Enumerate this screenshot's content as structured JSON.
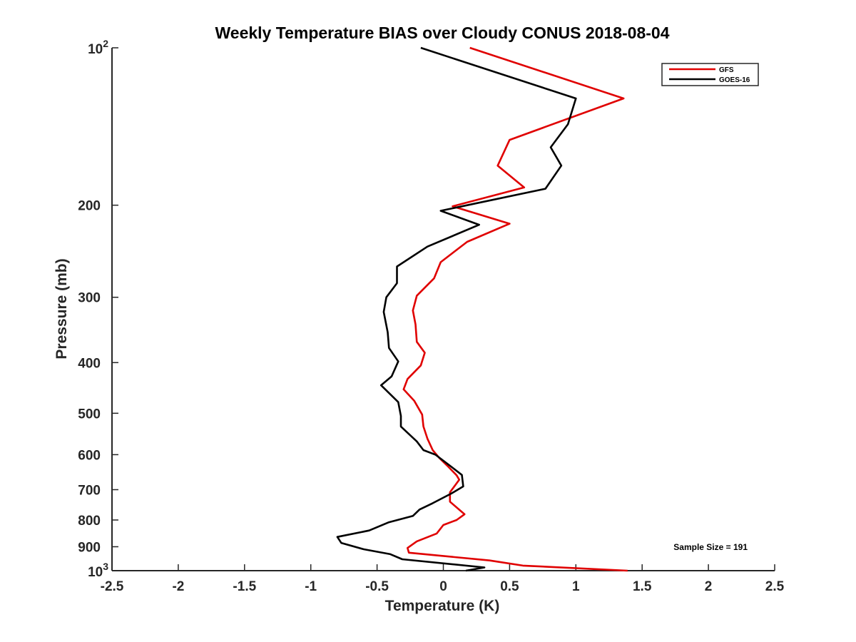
{
  "chart_data": {
    "type": "line",
    "title": "Weekly Temperature BIAS over Cloudy CONUS 2018-08-04",
    "xlabel": "Temperature (K)",
    "ylabel": "Pressure (mb)",
    "xlim": [
      -2.5,
      2.5
    ],
    "ylim": [
      100,
      1000
    ],
    "y_scale": "log",
    "y_reversed": true,
    "grid": false,
    "legend_position": "top-right",
    "x_ticks": [
      {
        "value": -2.5,
        "label": "-2.5"
      },
      {
        "value": -2,
        "label": "-2"
      },
      {
        "value": -1.5,
        "label": "-1.5"
      },
      {
        "value": -1,
        "label": "-1"
      },
      {
        "value": -0.5,
        "label": "-0.5"
      },
      {
        "value": 0,
        "label": "0"
      },
      {
        "value": 0.5,
        "label": "0.5"
      },
      {
        "value": 1,
        "label": "1"
      },
      {
        "value": 1.5,
        "label": "1.5"
      },
      {
        "value": 2,
        "label": "2"
      },
      {
        "value": 2.5,
        "label": "2.5"
      }
    ],
    "y_ticks": [
      {
        "value": 100,
        "base": "10",
        "exp": "2"
      },
      {
        "value": 200,
        "label": "200"
      },
      {
        "value": 300,
        "label": "300"
      },
      {
        "value": 400,
        "label": "400"
      },
      {
        "value": 500,
        "label": "500"
      },
      {
        "value": 600,
        "label": "600"
      },
      {
        "value": 700,
        "label": "700"
      },
      {
        "value": 800,
        "label": "800"
      },
      {
        "value": 900,
        "label": "900"
      },
      {
        "value": 1000,
        "base": "10",
        "exp": "3"
      }
    ],
    "series": [
      {
        "name": "GFS",
        "color": "#e00000",
        "points": [
          [
            0.2,
            100
          ],
          [
            1.36,
            125
          ],
          [
            0.5,
            150
          ],
          [
            0.41,
            168
          ],
          [
            0.61,
            185
          ],
          [
            0.07,
            201
          ],
          [
            0.5,
            217
          ],
          [
            0.18,
            235
          ],
          [
            -0.02,
            257
          ],
          [
            -0.07,
            276
          ],
          [
            -0.2,
            298
          ],
          [
            -0.23,
            318
          ],
          [
            -0.21,
            338
          ],
          [
            -0.2,
            365
          ],
          [
            -0.14,
            383
          ],
          [
            -0.17,
            405
          ],
          [
            -0.27,
            430
          ],
          [
            -0.3,
            450
          ],
          [
            -0.22,
            473
          ],
          [
            -0.16,
            503
          ],
          [
            -0.15,
            530
          ],
          [
            -0.12,
            559
          ],
          [
            -0.08,
            588
          ],
          [
            -0.03,
            609
          ],
          [
            0.03,
            630
          ],
          [
            0.1,
            657
          ],
          [
            0.12,
            670
          ],
          [
            0.05,
            708
          ],
          [
            0.05,
            738
          ],
          [
            0.16,
            780
          ],
          [
            0.1,
            800
          ],
          [
            0.0,
            818
          ],
          [
            -0.05,
            849
          ],
          [
            -0.2,
            879
          ],
          [
            -0.27,
            905
          ],
          [
            -0.26,
            924
          ],
          [
            0.35,
            956
          ],
          [
            0.6,
            978
          ],
          [
            1.39,
            1000
          ]
        ]
      },
      {
        "name": "GOES-16",
        "color": "#000000",
        "points": [
          [
            -0.17,
            100
          ],
          [
            1.0,
            125
          ],
          [
            0.94,
            140
          ],
          [
            0.81,
            155
          ],
          [
            0.89,
            168
          ],
          [
            0.77,
            186
          ],
          [
            -0.02,
            205
          ],
          [
            0.27,
            218
          ],
          [
            -0.12,
            240
          ],
          [
            -0.35,
            262
          ],
          [
            -0.35,
            282
          ],
          [
            -0.43,
            300
          ],
          [
            -0.45,
            320
          ],
          [
            -0.42,
            350
          ],
          [
            -0.41,
            375
          ],
          [
            -0.34,
            398
          ],
          [
            -0.39,
            425
          ],
          [
            -0.47,
            442
          ],
          [
            -0.34,
            476
          ],
          [
            -0.32,
            506
          ],
          [
            -0.32,
            530
          ],
          [
            -0.2,
            566
          ],
          [
            -0.15,
            588
          ],
          [
            -0.06,
            600
          ],
          [
            0.05,
            630
          ],
          [
            0.14,
            656
          ],
          [
            0.15,
            690
          ],
          [
            0.06,
            712
          ],
          [
            -0.08,
            743
          ],
          [
            -0.18,
            764
          ],
          [
            -0.23,
            786
          ],
          [
            -0.41,
            808
          ],
          [
            -0.56,
            838
          ],
          [
            -0.8,
            862
          ],
          [
            -0.77,
            885
          ],
          [
            -0.6,
            910
          ],
          [
            -0.4,
            930
          ],
          [
            -0.31,
            951
          ],
          [
            0.31,
            986
          ],
          [
            0.17,
            1000
          ]
        ]
      }
    ],
    "annotation": "Sample Size = 191"
  }
}
